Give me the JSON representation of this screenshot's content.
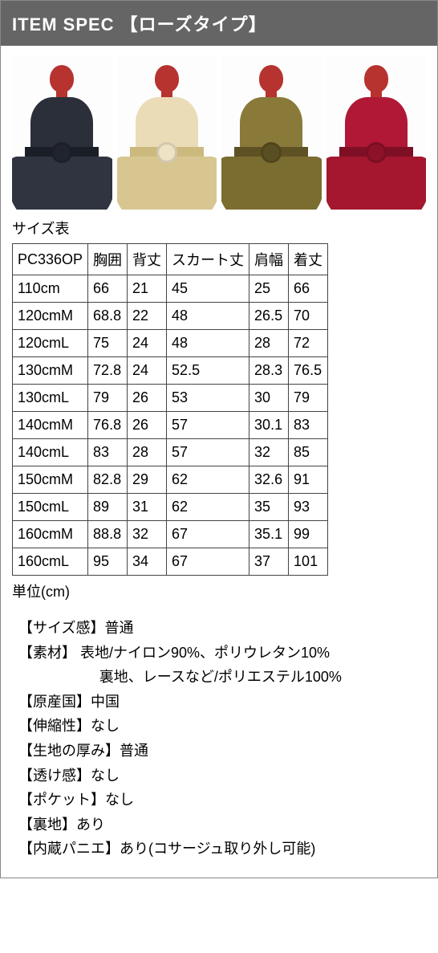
{
  "header": {
    "title": "ITEM SPEC 【ローズタイプ】"
  },
  "gallery": {
    "items": [
      {
        "head": "#b7332f",
        "bodice": "#2a2f3a",
        "sash": "#1a1e26",
        "skirt": "#2f3440",
        "rose": "#20242d"
      },
      {
        "head": "#b7332f",
        "bodice": "#e9dcb7",
        "sash": "#cbb97e",
        "skirt": "#d7c690",
        "rose": "#efe3c6"
      },
      {
        "head": "#b7332f",
        "bodice": "#8a7a3a",
        "sash": "#5e5224",
        "skirt": "#7b6c30",
        "rose": "#5a4f22"
      },
      {
        "head": "#b7332f",
        "bodice": "#b01836",
        "sash": "#7e0f25",
        "skirt": "#a4172f",
        "rose": "#8d1129"
      }
    ]
  },
  "sizeTable": {
    "label": "サイズ表",
    "columns": [
      "PC336OP",
      "胸囲",
      "背丈",
      "スカート丈",
      "肩幅",
      "着丈"
    ],
    "rows": [
      [
        "110cm",
        "66",
        "21",
        "45",
        "25",
        "66"
      ],
      [
        "120cmM",
        "68.8",
        "22",
        "48",
        "26.5",
        "70"
      ],
      [
        "120cmL",
        "75",
        "24",
        "48",
        "28",
        "72"
      ],
      [
        "130cmM",
        "72.8",
        "24",
        "52.5",
        "28.3",
        "76.5"
      ],
      [
        "130cmL",
        "79",
        "26",
        "53",
        "30",
        "79"
      ],
      [
        "140cmM",
        "76.8",
        "26",
        "57",
        "30.1",
        "83"
      ],
      [
        "140cmL",
        "83",
        "28",
        "57",
        "32",
        "85"
      ],
      [
        "150cmM",
        "82.8",
        "29",
        "62",
        "32.6",
        "91"
      ],
      [
        "150cmL",
        "89",
        "31",
        "62",
        "35",
        "93"
      ],
      [
        "160cmM",
        "88.8",
        "32",
        "67",
        "35.1",
        "99"
      ],
      [
        "160cmL",
        "95",
        "34",
        "67",
        "37",
        "101"
      ]
    ],
    "unit": "単位(cm)"
  },
  "specs": {
    "items": [
      {
        "label": "【サイズ感】",
        "value": "普通"
      },
      {
        "label": "【素材】",
        "value": " 表地/ナイロン90%、ポリウレタン10%"
      },
      {
        "label": "",
        "value": "裏地、レースなど/ポリエステル100%",
        "indent": true
      },
      {
        "label": "【原産国】",
        "value": "中国"
      },
      {
        "label": "【伸縮性】",
        "value": "なし"
      },
      {
        "label": "【生地の厚み】",
        "value": "普通"
      },
      {
        "label": "【透け感】",
        "value": "なし"
      },
      {
        "label": "【ポケット】",
        "value": "なし"
      },
      {
        "label": "【裏地】",
        "value": "あり"
      },
      {
        "label": "【内蔵パニエ】",
        "value": "あり(コサージュ取り外し可能)"
      }
    ]
  }
}
